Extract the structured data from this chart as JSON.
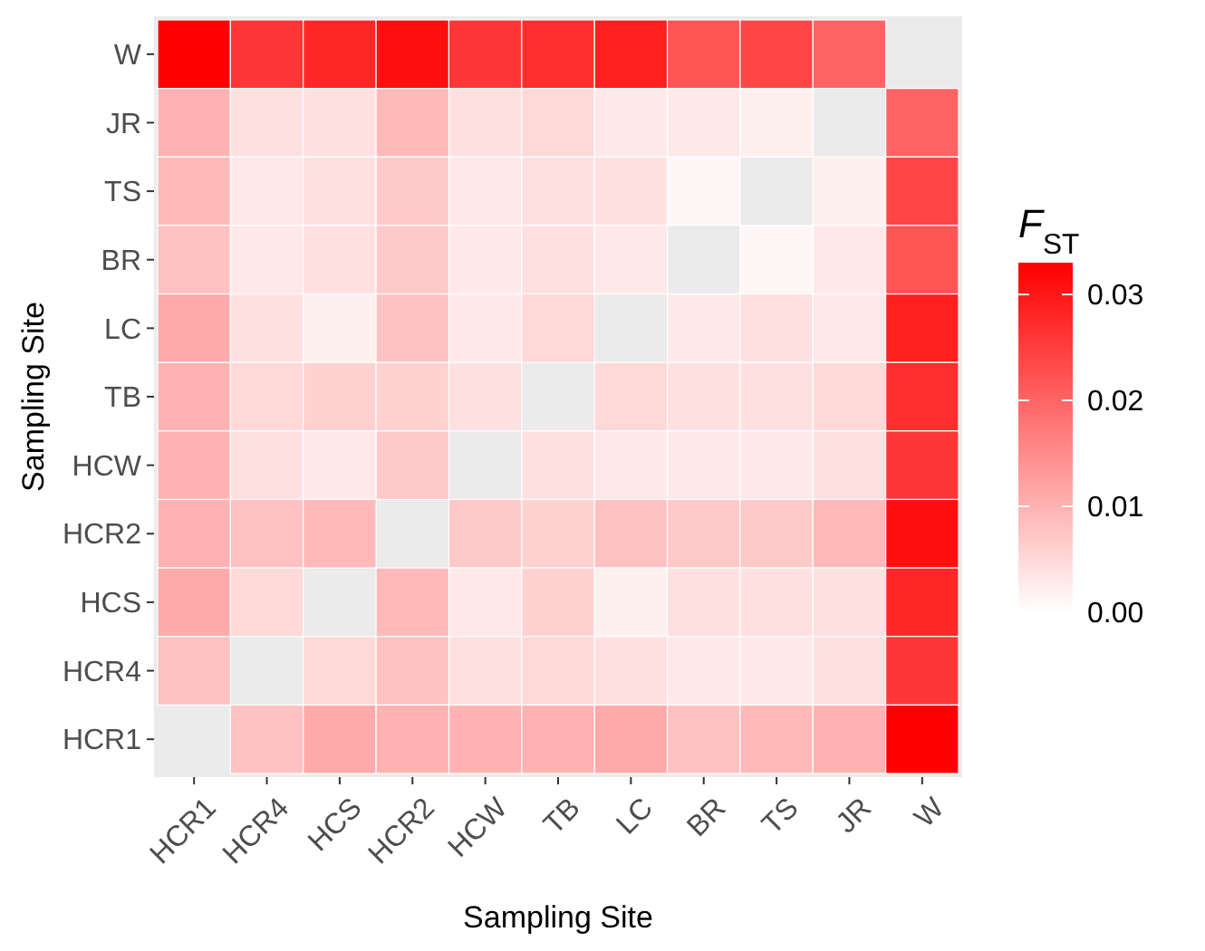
{
  "chart_data": {
    "type": "heatmap",
    "xlabel": "Sampling Site",
    "ylabel": "Sampling Site",
    "clabel": "F$_{ST}$",
    "categories": [
      "HCR1",
      "HCR4",
      "HCS",
      "HCR2",
      "HCW",
      "TB",
      "LC",
      "BR",
      "TS",
      "JR",
      "W"
    ],
    "y_categories": [
      "W",
      "JR",
      "TS",
      "BR",
      "LC",
      "TB",
      "HCW",
      "HCR2",
      "HCS",
      "HCR4",
      "HCR1"
    ],
    "cells": [
      [
        0.033,
        0.026,
        0.028,
        0.031,
        0.026,
        0.027,
        0.029,
        0.022,
        0.024,
        0.02,
        null
      ],
      [
        0.01,
        0.004,
        0.004,
        0.009,
        0.004,
        0.005,
        0.003,
        0.003,
        0.002,
        null,
        0.02
      ],
      [
        0.009,
        0.003,
        0.004,
        0.007,
        0.003,
        0.004,
        0.004,
        0.001,
        null,
        0.002,
        0.024
      ],
      [
        0.008,
        0.003,
        0.004,
        0.007,
        0.003,
        0.004,
        0.003,
        null,
        0.001,
        0.003,
        0.022
      ],
      [
        0.011,
        0.004,
        0.002,
        0.008,
        0.003,
        0.005,
        null,
        0.003,
        0.004,
        0.003,
        0.029
      ],
      [
        0.01,
        0.005,
        0.006,
        0.006,
        0.004,
        null,
        0.005,
        0.004,
        0.004,
        0.005,
        0.027
      ],
      [
        0.01,
        0.004,
        0.003,
        0.007,
        null,
        0.004,
        0.003,
        0.003,
        0.003,
        0.004,
        0.026
      ],
      [
        0.01,
        0.008,
        0.009,
        null,
        0.007,
        0.006,
        0.008,
        0.007,
        0.007,
        0.009,
        0.031
      ],
      [
        0.011,
        0.005,
        null,
        0.009,
        0.003,
        0.006,
        0.002,
        0.004,
        0.004,
        0.004,
        0.028
      ],
      [
        0.008,
        null,
        0.005,
        0.008,
        0.004,
        0.005,
        0.004,
        0.003,
        0.003,
        0.004,
        0.026
      ],
      [
        null,
        0.008,
        0.011,
        0.01,
        0.01,
        0.01,
        0.011,
        0.008,
        0.009,
        0.01,
        0.033
      ]
    ],
    "clim": [
      0,
      0.033
    ],
    "cticks": [
      {
        "value": 0,
        "label": "0.00"
      },
      {
        "value": 0.01,
        "label": "0.01"
      },
      {
        "value": 0.02,
        "label": "0.02"
      },
      {
        "value": 0.03,
        "label": "0.03"
      }
    ],
    "color": "#ff0000"
  }
}
